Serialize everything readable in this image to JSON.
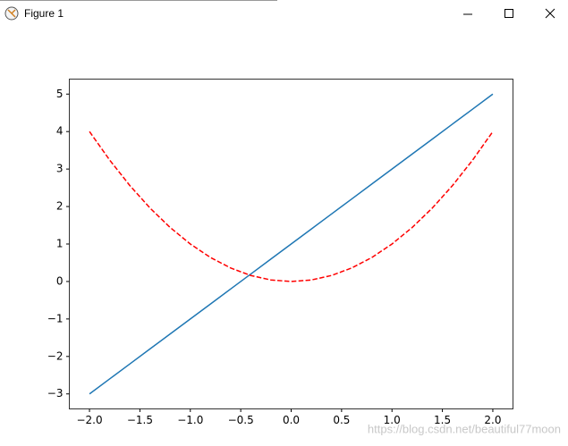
{
  "window_title": "Figure 1",
  "watermark": "https://blog.csdn.net/beautiful77moon",
  "chart_data": {
    "type": "line",
    "x": [
      -2,
      -1.8,
      -1.6,
      -1.4,
      -1.2,
      -1,
      -0.8,
      -0.6,
      -0.4,
      -0.2,
      0,
      0.2,
      0.4,
      0.6,
      0.8,
      1,
      1.2,
      1.4,
      1.6,
      1.8,
      2
    ],
    "series": [
      {
        "color": "#1f77b4",
        "dash": "solid",
        "values": [
          -3,
          -2.6,
          -2.2,
          -1.8,
          -1.4,
          -1,
          -0.6,
          -0.2,
          0.2,
          0.6,
          1,
          1.4,
          1.8,
          2.2,
          2.6,
          3,
          3.4,
          3.8,
          4.2,
          4.6,
          5
        ]
      },
      {
        "color": "#ff0000",
        "dash": "dashed",
        "values": [
          4,
          3.24,
          2.56,
          1.96,
          1.44,
          1,
          0.64,
          0.36,
          0.16,
          0.04,
          0,
          0.04,
          0.16,
          0.36,
          0.64,
          1,
          1.44,
          1.96,
          2.56,
          3.24,
          4
        ]
      }
    ],
    "xlim": [
      -2.2,
      2.2
    ],
    "xticks": [
      {
        "value": -2,
        "label": "−2.0"
      },
      {
        "value": -1.5,
        "label": "−1.5"
      },
      {
        "value": -1,
        "label": "−1.0"
      },
      {
        "value": -0.5,
        "label": "−0.5"
      },
      {
        "value": 0,
        "label": "0.0"
      },
      0.5,
      {
        "value": 1,
        "label": "1.0"
      },
      1.5,
      {
        "value": 2,
        "label": "2.0"
      }
    ],
    "ylim": [
      -3.4,
      5.4
    ],
    "yticks": [
      {
        "value": -3,
        "label": "−3"
      },
      {
        "value": -2,
        "label": "−2"
      },
      {
        "value": -1,
        "label": "−1"
      },
      0,
      1,
      2,
      3,
      4,
      5
    ]
  }
}
